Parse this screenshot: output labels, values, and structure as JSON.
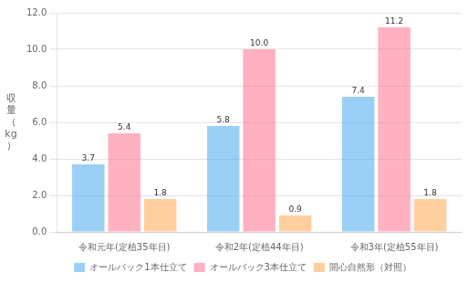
{
  "chart_data": {
    "type": "bar",
    "categories": [
      "令和元年(定植35年目)",
      "令和2年(定植44年目)",
      "令和3年(定植55年目)"
    ],
    "series": [
      {
        "name": "オールバック1本仕立て",
        "values": [
          3.7,
          5.8,
          7.4
        ],
        "value_labels": [
          "3.7",
          "5.8",
          "7.4"
        ]
      },
      {
        "name": "オールバック3本仕立て",
        "values": [
          5.4,
          10.0,
          11.2
        ],
        "value_labels": [
          "5.4",
          "10.0",
          "11.2"
        ]
      },
      {
        "name": "開心自然形（対照）",
        "values": [
          1.8,
          0.9,
          1.8
        ],
        "value_labels": [
          "1.8",
          "0.9",
          "1.8"
        ]
      }
    ],
    "ylabel": "収\n量\n（\nkg\n）",
    "ylim": [
      0,
      12.0
    ],
    "yticks": [
      {
        "value": 0,
        "label": "0.0"
      },
      {
        "value": 2,
        "label": "2.0"
      },
      {
        "value": 4,
        "label": "4.0"
      },
      {
        "value": 6,
        "label": "6.0"
      },
      {
        "value": 8,
        "label": "8.0"
      },
      {
        "value": 10,
        "label": "10.0"
      },
      {
        "value": 12,
        "label": "12.0"
      }
    ],
    "grid": true,
    "legend": "bottom",
    "data_labels": true
  }
}
